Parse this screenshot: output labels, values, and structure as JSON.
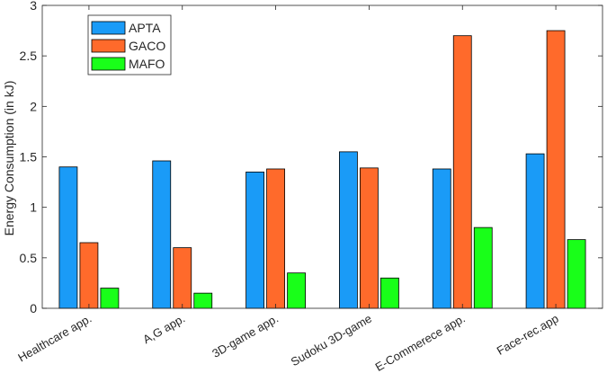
{
  "chart_data": {
    "type": "bar",
    "title": "",
    "xlabel": "",
    "ylabel": "Energy Consumption (in kJ)",
    "ylim": [
      0,
      3
    ],
    "yticks": [
      0,
      0.5,
      1,
      1.5,
      2,
      2.5,
      3
    ],
    "ytick_labels": [
      "0",
      "0.5",
      "1",
      "1.5",
      "2",
      "2.5",
      "3"
    ],
    "categories": [
      "Healthcare app.",
      "A,G app.",
      "3D-game app.",
      "Sudoku 3D-game",
      "E-Commerece app.",
      "Face-rec.app"
    ],
    "series": [
      {
        "name": "APTA",
        "color": "#1a9bf7",
        "values": [
          1.4,
          1.46,
          1.35,
          1.55,
          1.38,
          1.53
        ]
      },
      {
        "name": "GACO",
        "color": "#ff6a2b",
        "values": [
          0.65,
          0.6,
          1.38,
          1.39,
          2.7,
          2.75
        ]
      },
      {
        "name": "MAFO",
        "color": "#19ff19",
        "values": [
          0.2,
          0.15,
          0.35,
          0.3,
          0.8,
          0.68
        ]
      }
    ],
    "legend_position": "top-left",
    "grid": false
  }
}
